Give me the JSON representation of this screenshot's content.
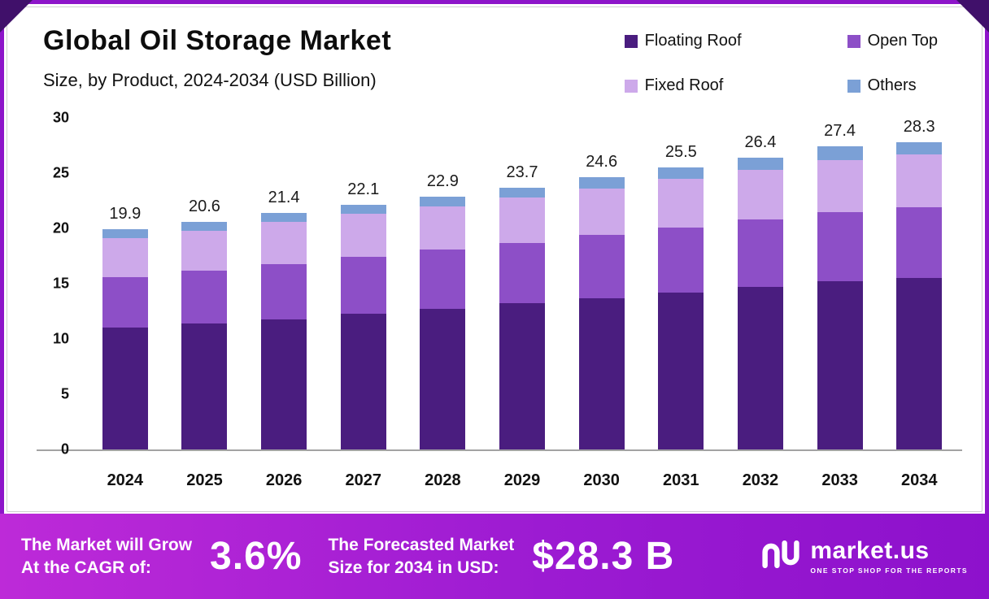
{
  "header": {
    "title": "Global Oil Storage Market",
    "subtitle": "Size, by Product, 2024-2034 (USD Billion)"
  },
  "legend": [
    {
      "label": "Floating Roof",
      "color": "#4a1d7f"
    },
    {
      "label": "Open Top",
      "color": "#8d4fc7"
    },
    {
      "label": "Fixed Roof",
      "color": "#cda9ea"
    },
    {
      "label": "Others",
      "color": "#7ba0d6"
    }
  ],
  "chart_data": {
    "type": "bar",
    "stacked": true,
    "title": "Global Oil Storage Market Size, by Product, 2024-2034 (USD Billion)",
    "categories": [
      "2024",
      "2025",
      "2026",
      "2027",
      "2028",
      "2029",
      "2030",
      "2031",
      "2032",
      "2033",
      "2034"
    ],
    "series": [
      {
        "name": "Floating Roof",
        "color": "#4a1d7f",
        "values": [
          11.0,
          11.4,
          11.8,
          12.3,
          12.7,
          13.2,
          13.7,
          14.2,
          14.7,
          15.2,
          15.8
        ]
      },
      {
        "name": "Open Top",
        "color": "#8d4fc7",
        "values": [
          4.6,
          4.8,
          5.0,
          5.1,
          5.4,
          5.5,
          5.7,
          5.9,
          6.1,
          6.3,
          6.5
        ]
      },
      {
        "name": "Fixed Roof",
        "color": "#cda9ea",
        "values": [
          3.5,
          3.6,
          3.8,
          3.9,
          3.9,
          4.1,
          4.2,
          4.4,
          4.5,
          4.7,
          4.9
        ]
      },
      {
        "name": "Others",
        "color": "#7ba0d6",
        "values": [
          0.8,
          0.8,
          0.8,
          0.8,
          0.9,
          0.9,
          1.0,
          1.0,
          1.1,
          1.2,
          1.1
        ]
      }
    ],
    "totals": [
      19.9,
      20.6,
      21.4,
      22.1,
      22.9,
      23.7,
      24.6,
      25.5,
      26.4,
      27.4,
      28.3
    ],
    "xlabel": "",
    "ylabel": "",
    "ylim": [
      0,
      30
    ],
    "yticks": [
      30,
      25,
      20,
      15,
      10,
      5,
      0
    ],
    "grid": false,
    "legend_position": "top-right"
  },
  "banner": {
    "cagr": {
      "line1": "The Market will Grow",
      "line2": "At the CAGR of:",
      "value": "3.6%"
    },
    "forecast": {
      "line1": "The Forecasted Market",
      "line2": "Size for 2034 in USD:",
      "value": "$28.3 B"
    },
    "brand": {
      "name": "market.us",
      "tagline": "ONE STOP SHOP FOR THE REPORTS"
    }
  }
}
